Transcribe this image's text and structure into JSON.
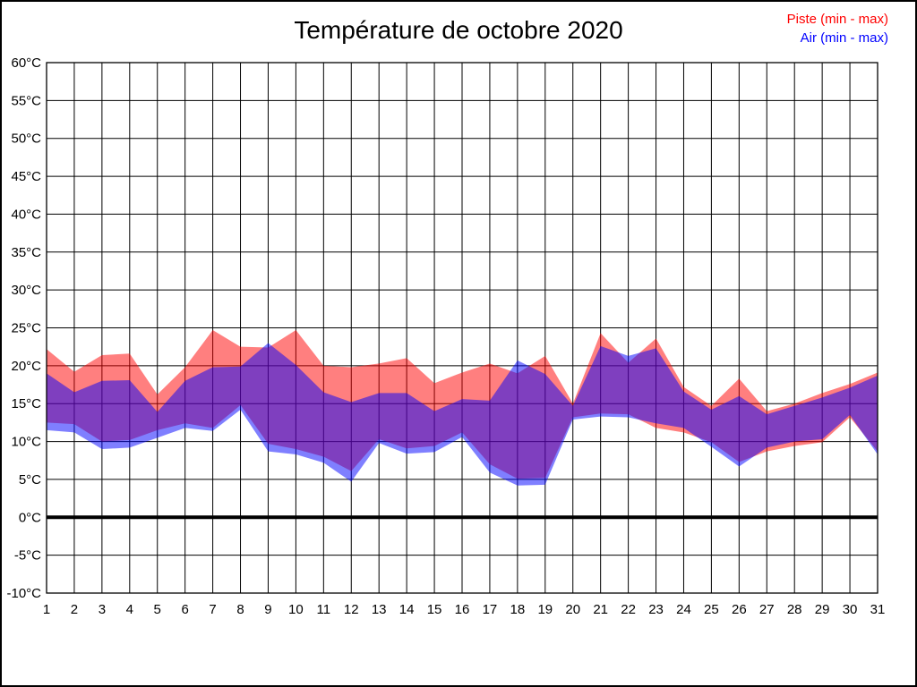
{
  "title": "Température de octobre 2020",
  "legend": {
    "items": [
      {
        "label": "Piste (min - max)",
        "color": "#ff0000"
      },
      {
        "label": "Air (min - max)",
        "color": "#0000ff"
      }
    ]
  },
  "chart_data": {
    "type": "area",
    "title": "Température de octobre 2020",
    "subtitle": "",
    "xlabel": "",
    "ylabel": "",
    "x": [
      1,
      2,
      3,
      4,
      5,
      6,
      7,
      8,
      9,
      10,
      11,
      12,
      13,
      14,
      15,
      16,
      17,
      18,
      19,
      20,
      21,
      22,
      23,
      24,
      25,
      26,
      27,
      28,
      29,
      30,
      31
    ],
    "series": [
      {
        "name": "Piste (min - max)",
        "kind": "min-max-band",
        "color": "#ff0000",
        "fill_opacity": 0.5,
        "min": [
          12.5,
          12.3,
          10.0,
          10.2,
          11.5,
          12.4,
          11.8,
          14.8,
          9.7,
          9.0,
          8.0,
          6.1,
          10.3,
          9.1,
          9.4,
          11.2,
          7.0,
          5.1,
          5.2,
          13.2,
          13.7,
          13.6,
          11.8,
          11.2,
          9.9,
          7.3,
          8.7,
          9.4,
          9.9,
          13.2,
          8.7
        ],
        "max": [
          22.2,
          19.2,
          21.4,
          21.6,
          16.2,
          19.8,
          24.7,
          22.5,
          22.4,
          24.7,
          20.0,
          19.8,
          20.3,
          21.0,
          17.7,
          19.1,
          20.3,
          19.0,
          21.3,
          15.0,
          24.3,
          20.4,
          23.6,
          17.2,
          14.7,
          18.3,
          14.0,
          15.0,
          16.4,
          17.6,
          19.1
        ]
      },
      {
        "name": "Air (min - max)",
        "kind": "min-max-band",
        "color": "#0000ff",
        "fill_opacity": 0.5,
        "min": [
          11.5,
          11.2,
          9.0,
          9.2,
          10.5,
          11.8,
          11.4,
          14.2,
          8.7,
          8.3,
          7.2,
          4.7,
          9.8,
          8.4,
          8.6,
          10.6,
          5.9,
          4.2,
          4.3,
          12.9,
          13.3,
          13.2,
          12.4,
          11.8,
          9.3,
          6.7,
          9.2,
          10.0,
          10.3,
          13.5,
          8.3
        ],
        "max": [
          19.0,
          16.5,
          18.0,
          18.1,
          13.9,
          18.0,
          19.8,
          19.9,
          23.0,
          20.1,
          16.5,
          15.2,
          16.4,
          16.4,
          14.0,
          15.6,
          15.4,
          20.7,
          18.9,
          14.7,
          22.6,
          21.3,
          22.3,
          16.6,
          14.2,
          16.0,
          13.6,
          14.7,
          15.8,
          17.1,
          18.7
        ]
      }
    ],
    "ylim": [
      -10,
      60
    ],
    "ytick_step": 5,
    "ytick_suffix": "°C",
    "xtick_labels": [
      "1",
      "2",
      "3",
      "4",
      "5",
      "6",
      "7",
      "8",
      "9",
      "10",
      "11",
      "12",
      "13",
      "14",
      "15",
      "16",
      "17",
      "18",
      "19",
      "20",
      "21",
      "22",
      "23",
      "24",
      "25",
      "26",
      "27",
      "28",
      "29",
      "30",
      "31"
    ],
    "grid": true,
    "gridline_color": "#000000",
    "zero_line": {
      "value": 0,
      "color": "#000000",
      "weight": 4
    },
    "legend_position": "top-right"
  }
}
